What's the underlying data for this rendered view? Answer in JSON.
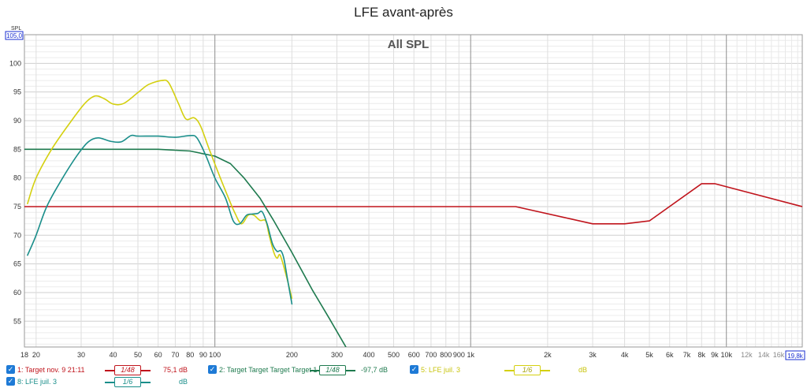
{
  "chart_data": {
    "type": "line",
    "title": "LFE avant-après",
    "subtitle": "All SPL",
    "ylabel": "SPL",
    "xlabel": "",
    "x_scale": "log",
    "xlim": [
      18,
      19800
    ],
    "ylim": [
      50.5,
      105
    ],
    "y_top_label": "105,0",
    "x_right_label": "19,8k",
    "y_ticks": [
      55,
      60,
      65,
      70,
      75,
      80,
      85,
      90,
      95,
      100
    ],
    "y_tick_labels": [
      "55",
      "60",
      "65",
      "70",
      "75",
      "80",
      "85",
      "90",
      "95",
      "100"
    ],
    "x_ticks": [
      18,
      20,
      30,
      40,
      50,
      60,
      70,
      80,
      90,
      100,
      200,
      300,
      400,
      500,
      600,
      700,
      800,
      900,
      1000,
      2000,
      3000,
      4000,
      5000,
      6000,
      7000,
      8000,
      9000,
      10000,
      12000,
      14000,
      16000
    ],
    "x_tick_labels": [
      "18",
      "20",
      "30",
      "40",
      "50",
      "60",
      "70",
      "80",
      "90",
      "100",
      "200",
      "300",
      "400",
      "500",
      "600",
      "700",
      "800",
      "900",
      "1k",
      "2k",
      "3k",
      "4k",
      "5k",
      "6k",
      "7k",
      "8k",
      "9k",
      "10k",
      "12k",
      "14k",
      "16k"
    ],
    "grid": true,
    "legend_position": "bottom",
    "series": [
      {
        "name": "1: Target nov. 9 21:11",
        "color": "#c0141c",
        "smoothing": "1/48",
        "value_label": "75,1 dB",
        "points": [
          [
            18,
            75
          ],
          [
            1500,
            75
          ],
          [
            3000,
            72
          ],
          [
            4000,
            72
          ],
          [
            5000,
            72.5
          ],
          [
            8000,
            79
          ],
          [
            9000,
            79
          ],
          [
            19800,
            75
          ]
        ]
      },
      {
        "name": "2: Target Target Target Target 1",
        "color": "#1e7a4e",
        "smoothing": "1/48",
        "value_label": "-97,7 dB",
        "points": [
          [
            18,
            85
          ],
          [
            40,
            85
          ],
          [
            60,
            85
          ],
          [
            80,
            84.7
          ],
          [
            100,
            83.8
          ],
          [
            115,
            82.5
          ],
          [
            130,
            80
          ],
          [
            150,
            76.5
          ],
          [
            170,
            72.5
          ],
          [
            200,
            67
          ],
          [
            240,
            60.5
          ],
          [
            280,
            55.5
          ],
          [
            330,
            50
          ]
        ]
      },
      {
        "name": "5: LFE juil. 3",
        "color": "#d4d010",
        "smoothing": "1/6",
        "value_label": "dB",
        "points": [
          [
            18.5,
            75.5
          ],
          [
            20,
            80
          ],
          [
            23,
            85
          ],
          [
            27,
            89.5
          ],
          [
            31,
            93
          ],
          [
            34,
            94.3
          ],
          [
            37,
            93.8
          ],
          [
            40,
            92.9
          ],
          [
            44,
            93
          ],
          [
            50,
            94.9
          ],
          [
            55,
            96.3
          ],
          [
            62,
            97
          ],
          [
            66,
            96.6
          ],
          [
            72,
            93
          ],
          [
            77,
            90.3
          ],
          [
            83,
            90.5
          ],
          [
            88,
            89
          ],
          [
            95,
            85
          ],
          [
            105,
            80
          ],
          [
            113,
            76.5
          ],
          [
            120,
            73.8
          ],
          [
            127,
            72
          ],
          [
            135,
            73.5
          ],
          [
            142,
            73.5
          ],
          [
            150,
            72.6
          ],
          [
            158,
            72.5
          ],
          [
            163,
            70
          ],
          [
            170,
            67
          ],
          [
            175,
            66
          ],
          [
            180,
            66.5
          ],
          [
            190,
            63
          ],
          [
            200,
            59
          ]
        ]
      },
      {
        "name": "8: LFE juil. 3",
        "color": "#1a8e8a",
        "smoothing": "1/6",
        "value_label": "dB",
        "points": [
          [
            18.5,
            66.5
          ],
          [
            20,
            70
          ],
          [
            22,
            75
          ],
          [
            25,
            79.5
          ],
          [
            29,
            84
          ],
          [
            32,
            86.3
          ],
          [
            35,
            87
          ],
          [
            39,
            86.4
          ],
          [
            43,
            86.3
          ],
          [
            47,
            87.4
          ],
          [
            50,
            87.3
          ],
          [
            60,
            87.3
          ],
          [
            70,
            87.1
          ],
          [
            80,
            87.4
          ],
          [
            85,
            87
          ],
          [
            92,
            84
          ],
          [
            100,
            80
          ],
          [
            110,
            76.5
          ],
          [
            118,
            72.5
          ],
          [
            125,
            72
          ],
          [
            133,
            73.5
          ],
          [
            140,
            73.7
          ],
          [
            147,
            73.8
          ],
          [
            153,
            74.1
          ],
          [
            160,
            72
          ],
          [
            168,
            68.5
          ],
          [
            175,
            67.2
          ],
          [
            181,
            67.3
          ],
          [
            186,
            66
          ],
          [
            192,
            62.5
          ],
          [
            200,
            58
          ]
        ]
      }
    ]
  },
  "legend": {
    "check_mark": "✓",
    "items": [
      {
        "label": "1: Target nov. 9 21:11",
        "smoothing": "1/48",
        "value": "75,1 dB"
      },
      {
        "label": "2: Target Target Target Target 1",
        "smoothing": "1/48",
        "value": "-97,7 dB"
      },
      {
        "label": "5: LFE juil. 3",
        "smoothing": "1/6",
        "value": "dB"
      },
      {
        "label": "8: LFE juil. 3",
        "smoothing": "1/6",
        "value": "dB"
      }
    ]
  }
}
